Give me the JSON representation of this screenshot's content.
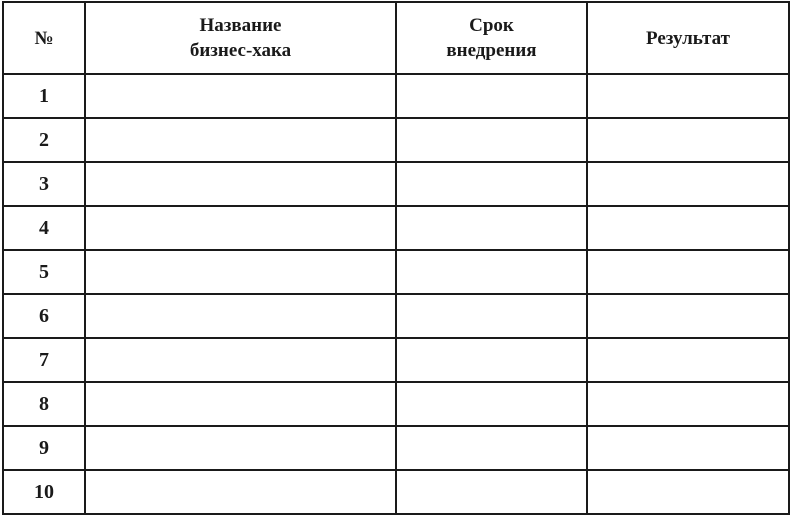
{
  "table": {
    "headers": [
      "№",
      "Название бизнес-хака",
      "Срок внедрения",
      "Результат"
    ],
    "header_lines": [
      [
        "№"
      ],
      [
        "Название",
        "бизнес-хака"
      ],
      [
        "Срок",
        "внедрения"
      ],
      [
        "Результат"
      ]
    ],
    "rows": [
      [
        "1",
        "",
        "",
        ""
      ],
      [
        "2",
        "",
        "",
        ""
      ],
      [
        "3",
        "",
        "",
        ""
      ],
      [
        "4",
        "",
        "",
        ""
      ],
      [
        "5",
        "",
        "",
        ""
      ],
      [
        "6",
        "",
        "",
        ""
      ],
      [
        "7",
        "",
        "",
        ""
      ],
      [
        "8",
        "",
        "",
        ""
      ],
      [
        "9",
        "",
        "",
        ""
      ],
      [
        "10",
        "",
        "",
        ""
      ]
    ]
  }
}
